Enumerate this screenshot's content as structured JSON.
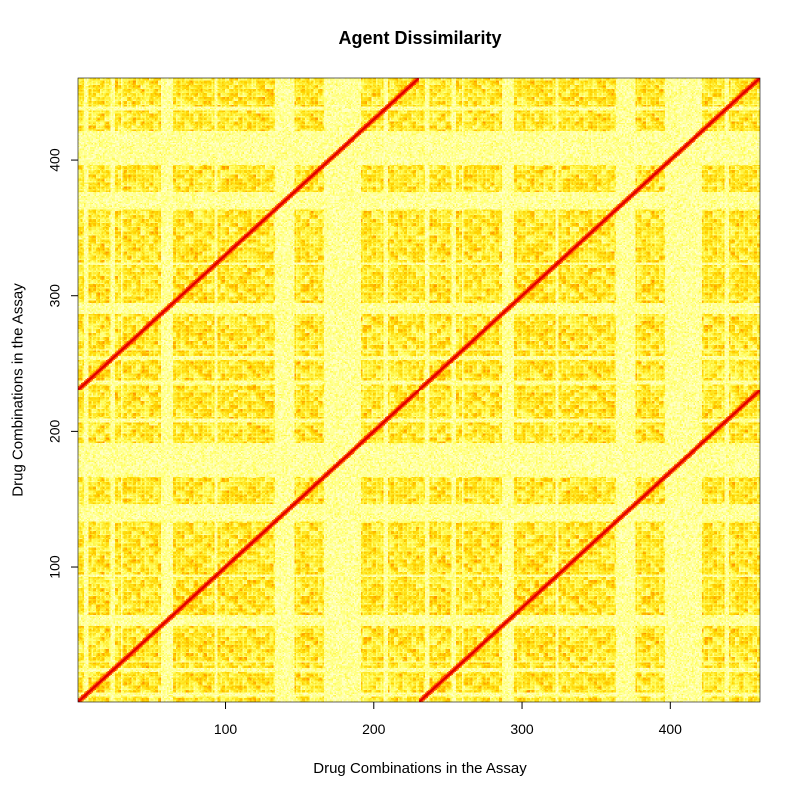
{
  "chart_data": {
    "type": "heatmap",
    "title": "Agent Dissimilarity",
    "xlabel": "Drug Combinations in the Assay",
    "ylabel": "Drug Combinations in the Assay",
    "xlim": [
      1,
      460
    ],
    "ylim": [
      1,
      460
    ],
    "n_rows": 460,
    "n_cols": 460,
    "block_size": 230,
    "x_ticks": [
      100,
      200,
      300,
      400
    ],
    "y_ticks": [
      100,
      200,
      300,
      400
    ],
    "color_scale": [
      "#ff0000",
      "#ff4500",
      "#ff8c00",
      "#ffd700",
      "#ffff66",
      "#ffffcc"
    ],
    "color_meaning": "red = low dissimilarity, pale yellow = high dissimilarity",
    "diagonal_lines": [
      {
        "x_start": 1,
        "y_start": 1,
        "x_end": 460,
        "y_end": 460
      },
      {
        "x_start": 1,
        "y_start": 231,
        "x_end": 230,
        "y_end": 460
      },
      {
        "x_start": 231,
        "y_start": 1,
        "x_end": 460,
        "y_end": 230
      }
    ],
    "grid": false
  }
}
